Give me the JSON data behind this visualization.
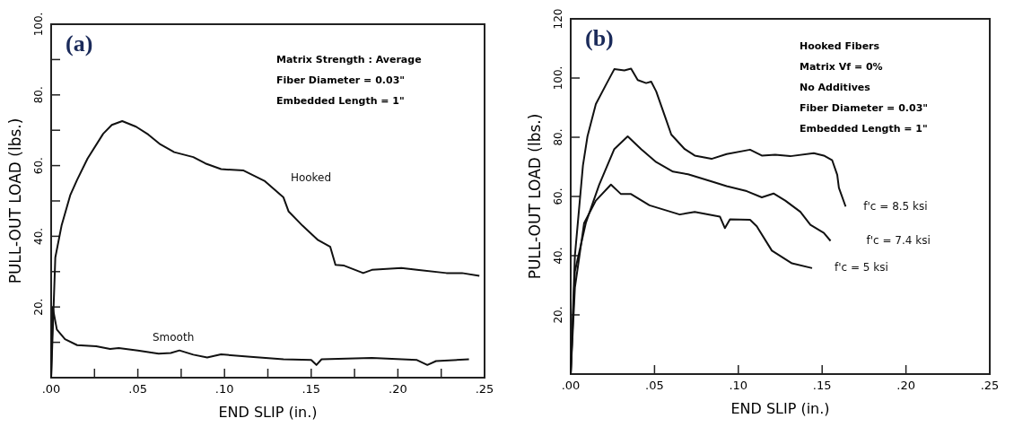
{
  "chart_data": [
    {
      "type": "line",
      "title": "(a)",
      "xlabel": "END SLIP  (in.)",
      "ylabel": "PULL-OUT LOAD  (lbs.)",
      "annotations": [
        "Matrix Strength : Average",
        "Fiber Diameter = 0.03\"",
        "Embedded Length = 1\""
      ],
      "xlim": [
        0,
        0.25
      ],
      "ylim": [
        0,
        100
      ],
      "xticks": [
        {
          "value": 0,
          "label": ".00"
        },
        {
          "value": 0.025,
          "label": null
        },
        {
          "value": 0.05,
          "label": ".05"
        },
        {
          "value": 0.075,
          "label": null
        },
        {
          "value": 0.1,
          "label": ".10"
        },
        {
          "value": 0.125,
          "label": null
        },
        {
          "value": 0.15,
          "label": ".15"
        },
        {
          "value": 0.175,
          "label": null
        },
        {
          "value": 0.2,
          "label": ".20"
        },
        {
          "value": 0.225,
          "label": null
        },
        {
          "value": 0.25,
          "label": ".25"
        }
      ],
      "yticks": [
        {
          "value": 10,
          "label": null
        },
        {
          "value": 20,
          "label": "20."
        },
        {
          "value": 30,
          "label": null
        },
        {
          "value": 40,
          "label": "40."
        },
        {
          "value": 50,
          "label": null
        },
        {
          "value": 60,
          "label": "60."
        },
        {
          "value": 70,
          "label": null
        },
        {
          "value": 80,
          "label": "80."
        },
        {
          "value": 90,
          "label": null
        },
        {
          "value": 100,
          "label": "100."
        }
      ],
      "grid": false,
      "marker": "none",
      "line_style": "solid",
      "series": [
        {
          "name": "Hooked",
          "color": "#111111",
          "x": [
            0,
            0.0024,
            0.006,
            0.011,
            0.015,
            0.021,
            0.03,
            0.035,
            0.041,
            0.049,
            0.056,
            0.063,
            0.071,
            0.082,
            0.089,
            0.098,
            0.111,
            0.123,
            0.134,
            0.137,
            0.145,
            0.154,
            0.161,
            0.164,
            0.169,
            0.18,
            0.185,
            0.202,
            0.211,
            0.228,
            0.237,
            0.247
          ],
          "values": [
            0,
            34,
            43,
            51.6,
            56,
            62,
            69,
            71.5,
            72.6,
            71,
            68.8,
            66,
            63.8,
            62.4,
            60.6,
            59,
            58.6,
            55.7,
            51,
            47,
            43,
            38.9,
            37,
            31.9,
            31.7,
            29.6,
            30.5,
            31,
            30.5,
            29.6,
            29.6,
            28.8
          ]
        },
        {
          "name": "Smooth",
          "color": "#111111",
          "x": [
            0,
            0.0009,
            0.0033,
            0.008,
            0.015,
            0.026,
            0.034,
            0.039,
            0.05,
            0.062,
            0.069,
            0.074,
            0.082,
            0.09,
            0.098,
            0.115,
            0.134,
            0.15,
            0.153,
            0.156,
            0.185,
            0.211,
            0.217,
            0.222,
            0.241
          ],
          "values": [
            0,
            19.9,
            13.6,
            10.9,
            9.2,
            8.9,
            8.1,
            8.4,
            7.7,
            6.8,
            7,
            7.7,
            6.5,
            5.7,
            6.6,
            5.9,
            5.2,
            5,
            3.6,
            5.2,
            5.6,
            5,
            3.6,
            4.7,
            5.2
          ]
        }
      ]
    },
    {
      "type": "line",
      "title": "(b)",
      "xlabel": "END SLIP  (in.)",
      "ylabel": "PULL-OUT LOAD (lbs.)",
      "annotations": [
        "Hooked Fibers",
        "Matrix Vf = 0%",
        "No Additives",
        "Fiber Diameter = 0.03\"",
        "Embedded Length = 1\""
      ],
      "xlim": [
        0,
        0.25
      ],
      "ylim": [
        0,
        120
      ],
      "xticks": [
        {
          "value": 0,
          "label": ".00"
        },
        {
          "value": 0.05,
          "label": ".05"
        },
        {
          "value": 0.1,
          "label": ".10"
        },
        {
          "value": 0.15,
          "label": ".15"
        },
        {
          "value": 0.2,
          "label": ".20"
        },
        {
          "value": 0.25,
          "label": ".25"
        }
      ],
      "yticks": [
        {
          "value": 20,
          "label": "20."
        },
        {
          "value": 40,
          "label": "40."
        },
        {
          "value": 60,
          "label": "60."
        },
        {
          "value": 80,
          "label": "80."
        },
        {
          "value": 100,
          "label": "100."
        },
        120
      ],
      "grid": false,
      "marker": "none",
      "line_style": "solid",
      "series": [
        {
          "name": "f'c = 8.5 ksi",
          "color": "#111111",
          "x": [
            0,
            0.0025,
            0.0073,
            0.01,
            0.015,
            0.021,
            0.026,
            0.032,
            0.036,
            0.04,
            0.045,
            0.048,
            0.051,
            0.057,
            0.06,
            0.068,
            0.074,
            0.084,
            0.093,
            0.107,
            0.114,
            0.122,
            0.131,
            0.145,
            0.151,
            0.156,
            0.159,
            0.16,
            0.164
          ],
          "values": [
            0,
            40,
            70.5,
            80.3,
            91.2,
            97.7,
            103,
            102.6,
            103.2,
            99.3,
            98.3,
            98.8,
            95.5,
            85.8,
            80.9,
            76,
            73.8,
            72.7,
            74.3,
            75.8,
            73.8,
            74.1,
            73.6,
            74.6,
            73.8,
            72.2,
            67.3,
            62.9,
            56.6
          ]
        },
        {
          "name": "f'c = 7.4 ksi",
          "color": "#111111",
          "x": [
            0,
            0.0025,
            0.009,
            0.017,
            0.026,
            0.034,
            0.042,
            0.051,
            0.061,
            0.07,
            0.084,
            0.093,
            0.105,
            0.114,
            0.121,
            0.128,
            0.137,
            0.143,
            0.151,
            0.155
          ],
          "values": [
            0,
            34.7,
            51,
            64,
            76,
            80.3,
            76,
            71.6,
            68.4,
            67.5,
            65.1,
            63.5,
            61.8,
            59.7,
            61,
            58.6,
            54.8,
            50.4,
            47.7,
            45
          ]
        },
        {
          "name": "f'c = 5 ksi",
          "color": "#111111",
          "x": [
            0,
            0.0025,
            0.008,
            0.015,
            0.024,
            0.03,
            0.036,
            0.047,
            0.065,
            0.074,
            0.089,
            0.092,
            0.095,
            0.107,
            0.111,
            0.12,
            0.132,
            0.144
          ],
          "values": [
            0,
            29.2,
            51,
            58.6,
            64,
            60.8,
            60.8,
            57,
            53.9,
            54.8,
            53.2,
            49.3,
            52.3,
            52.1,
            49.9,
            41.7,
            37.4,
            35.8
          ]
        }
      ]
    }
  ]
}
